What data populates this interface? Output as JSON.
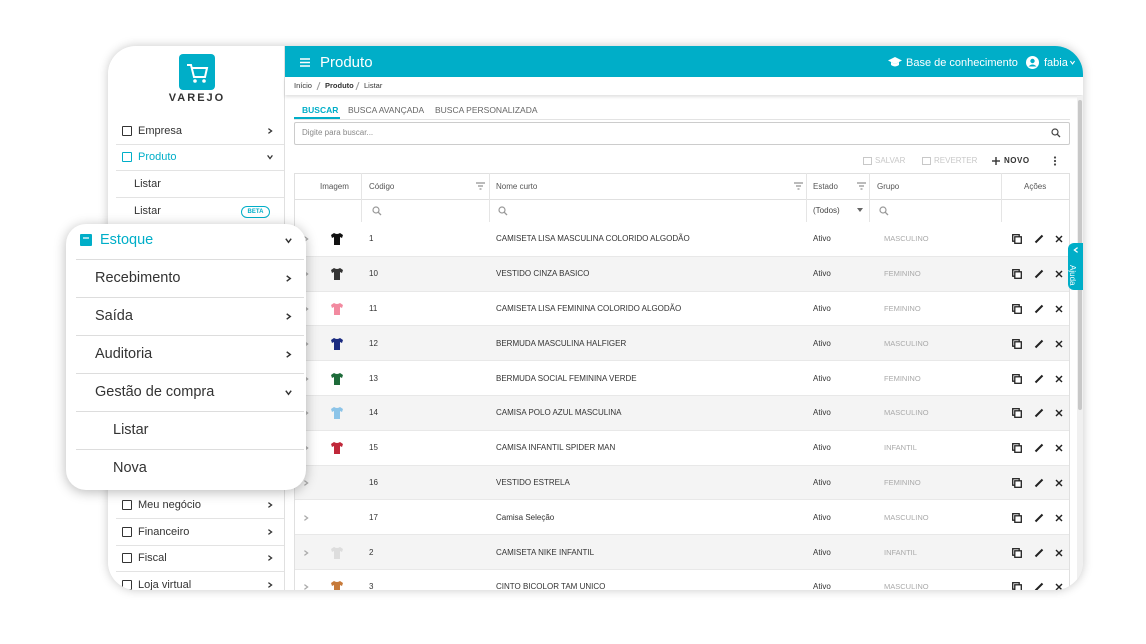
{
  "sidebar": {
    "logo": "VAREJO",
    "items": [
      {
        "label": "Empresa",
        "chevron": "right"
      },
      {
        "label": "Produto",
        "chevron": "down",
        "active": true
      },
      {
        "label": "Listar",
        "sub": true
      },
      {
        "label": "Listar",
        "sub": true,
        "badge": "BETA"
      },
      {
        "label": "Meu negócio",
        "chevron": "right"
      },
      {
        "label": "Financeiro",
        "chevron": "right"
      },
      {
        "label": "Fiscal",
        "chevron": "right"
      },
      {
        "label": "Loja virtual",
        "chevron": "right"
      }
    ]
  },
  "menu_popup": {
    "items": [
      {
        "label": "Estoque",
        "chevron": "down",
        "active": true
      },
      {
        "label": "Recebimento",
        "chevron": "right"
      },
      {
        "label": "Saída",
        "chevron": "right"
      },
      {
        "label": "Auditoria",
        "chevron": "right"
      },
      {
        "label": "Gestão de compra",
        "chevron": "down"
      },
      {
        "label": "Listar",
        "sub": true
      },
      {
        "label": "Nova",
        "sub": true
      }
    ]
  },
  "header": {
    "title": "Produto",
    "knowledge_base": "Base de conhecimento",
    "user": "fabia"
  },
  "breadcrumb": [
    "Início",
    "Produto",
    "Listar"
  ],
  "tabs": {
    "items": [
      "BUSCAR",
      "BUSCA AVANÇADA",
      "BUSCA PERSONALIZADA"
    ],
    "active": 0
  },
  "search": {
    "placeholder": "Digite para buscar..."
  },
  "toolbar": [
    {
      "label": "SALVAR",
      "enabled": false
    },
    {
      "label": "REVERTER",
      "enabled": false
    },
    {
      "label": "NOVO",
      "enabled": true
    }
  ],
  "table": {
    "columns": [
      "Imagem",
      "Código",
      "Nome curto",
      "Estado",
      "Grupo",
      "Ações"
    ],
    "estado_filter": "(Todos)",
    "rows": [
      {
        "code": 1,
        "name": "CAMISETA LISA MASCULINA COLORIDO ALGODÃO",
        "status": "Ativo",
        "group": "MASCULINO",
        "image": "#111111"
      },
      {
        "code": 10,
        "name": "VESTIDO CINZA BASICO",
        "status": "Ativo",
        "group": "FEMININO",
        "image": "#333333"
      },
      {
        "code": 11,
        "name": "CAMISETA LISA FEMININA COLORIDO ALGODÃO",
        "status": "Ativo",
        "group": "FEMININO",
        "image": "#f28aa0"
      },
      {
        "code": 12,
        "name": "BERMUDA MASCULINA HALFIGER",
        "status": "Ativo",
        "group": "MASCULINO",
        "image": "#1a2a80"
      },
      {
        "code": 13,
        "name": "BERMUDA SOCIAL FEMININA VERDE",
        "status": "Ativo",
        "group": "FEMININO",
        "image": "#1e6b3a"
      },
      {
        "code": 14,
        "name": "CAMISA POLO AZUL MASCULINA",
        "status": "Ativo",
        "group": "MASCULINO",
        "image": "#8cc4e8"
      },
      {
        "code": 15,
        "name": "CAMISA INFANTIL SPIDER MAN",
        "status": "Ativo",
        "group": "INFANTIL",
        "image": "#c0283a"
      },
      {
        "code": 16,
        "name": "VESTIDO ESTRELA",
        "status": "Ativo",
        "group": "FEMININO",
        "image": null
      },
      {
        "code": 17,
        "name": "Camisa Seleção",
        "status": "Ativo",
        "group": "MASCULINO",
        "image": null
      },
      {
        "code": 2,
        "name": "CAMISETA NIKE INFANTIL",
        "status": "Ativo",
        "group": "INFANTIL",
        "image": "#dddddd"
      },
      {
        "code": 3,
        "name": "CINTO BICOLOR TAM UNICO",
        "status": "Ativo",
        "group": "MASCULINO",
        "image": "#c77a3a"
      }
    ]
  },
  "help_tab": "Ajuda"
}
